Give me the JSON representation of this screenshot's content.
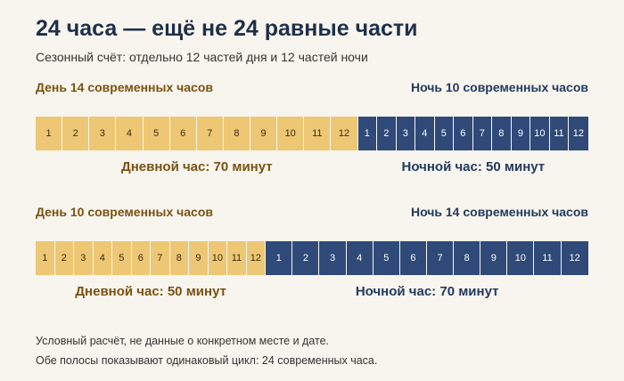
{
  "title": "24 часа — ещё не 24 равные части",
  "subtitle": "Сезонный счёт: отдельно 12 частей дня и 12 частей ночи",
  "colors": {
    "day": "#edc774",
    "night": "#2f4a78",
    "day_text": "#7a5212",
    "night_text": "#223a5e"
  },
  "rows": [
    {
      "day_header": "День 14 современных часов",
      "night_header": "Ночь 10 современных часов",
      "day_modern_hours": 14,
      "night_modern_hours": 10,
      "day_segments": [
        "1",
        "2",
        "3",
        "4",
        "5",
        "6",
        "7",
        "8",
        "9",
        "10",
        "11",
        "12"
      ],
      "night_segments": [
        "1",
        "2",
        "3",
        "4",
        "5",
        "6",
        "7",
        "8",
        "9",
        "10",
        "11",
        "12"
      ],
      "day_hour_label": "Дневной час: 70 минут",
      "night_hour_label": "Ночной час: 50 минут"
    },
    {
      "day_header": "День 10 современных часов",
      "night_header": "Ночь 14 современных часов",
      "day_modern_hours": 10,
      "night_modern_hours": 14,
      "day_segments": [
        "1",
        "2",
        "3",
        "4",
        "5",
        "6",
        "7",
        "8",
        "9",
        "10",
        "11",
        "12"
      ],
      "night_segments": [
        "1",
        "2",
        "3",
        "4",
        "5",
        "6",
        "7",
        "8",
        "9",
        "10",
        "11",
        "12"
      ],
      "day_hour_label": "Дневной час: 50 минут",
      "night_hour_label": "Ночной час: 70 минут"
    }
  ],
  "footnotes": [
    "Условный расчёт, не данные о конкретном месте и дате.",
    "Обе полосы показывают одинаковый цикл: 24 современных часа."
  ]
}
